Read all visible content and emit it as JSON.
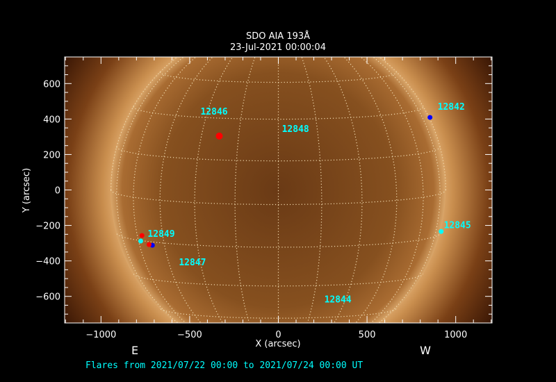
{
  "chart_data": {
    "type": "scatter",
    "title": "SDO AIA 193Å",
    "subtitle": "23-Jul-2021 00:00:04",
    "xlabel": "X (arcsec)",
    "ylabel": "Y (arcsec)",
    "xlim": [
      -1205,
      1205
    ],
    "ylim": [
      -750,
      750
    ],
    "xticks": [
      -1000,
      -500,
      0,
      500,
      1000
    ],
    "yticks": [
      -600,
      -400,
      -200,
      0,
      200,
      400,
      600
    ],
    "xtick_labels": [
      "−1000",
      "−500",
      "0",
      "500",
      "1000"
    ],
    "ytick_labels": [
      "−600",
      "−400",
      "−200",
      "0",
      "200",
      "400",
      "600"
    ],
    "east_label": "E",
    "west_label": "W",
    "grid": "heliographic lat/lon, 15° spacing",
    "background": "solar EUV image",
    "active_regions": [
      {
        "label": "12846",
        "x": -439,
        "y": 444
      },
      {
        "label": "12848",
        "x": 20,
        "y": 347
      },
      {
        "label": "12842",
        "x": 898,
        "y": 471
      },
      {
        "label": "12845",
        "x": 933,
        "y": -195
      },
      {
        "label": "12849",
        "x": -737,
        "y": -245
      },
      {
        "label": "12847",
        "x": -561,
        "y": -405
      },
      {
        "label": "12844",
        "x": 259,
        "y": -615
      }
    ],
    "flares": [
      {
        "x": -333,
        "y": 304,
        "color": "#ff0000",
        "size": "large"
      },
      {
        "x": 855,
        "y": 409,
        "color": "#0000ff",
        "size": "small"
      },
      {
        "x": 918,
        "y": -234,
        "color": "#00ffff",
        "size": "small"
      },
      {
        "x": -769,
        "y": -257,
        "color": "#ff0000",
        "size": "small"
      },
      {
        "x": -776,
        "y": -288,
        "color": "#00ffff",
        "size": "small"
      },
      {
        "x": -710,
        "y": -312,
        "color": "#0000ff",
        "size": "small"
      },
      {
        "x": -729,
        "y": -308,
        "color": "#ff0000",
        "size": "small"
      }
    ]
  },
  "footer": "Flares from 2021/07/22 00:00 to 2021/07/24 00:00 UT",
  "colors": {
    "label": "#00ffff",
    "axes": "#ffffff",
    "background": "#000000"
  }
}
